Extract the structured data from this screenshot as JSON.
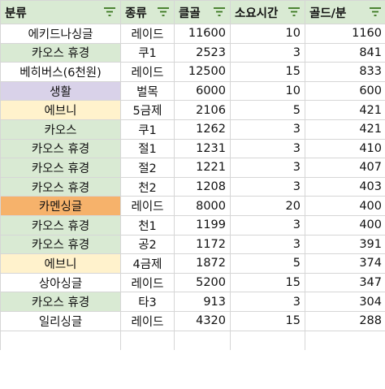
{
  "headers": [
    "분류",
    "종류",
    "클골",
    "소요시간",
    "골드/분"
  ],
  "colors": {
    "header_bg": "#d9ead3",
    "chaos": "#d9ead3",
    "life": "#d9d2e9",
    "epona": "#fff2cc",
    "kamen": "#f6b26b",
    "white": "#ffffff",
    "filter_icon": "#38761d"
  },
  "rows": [
    {
      "category": "에키드나싱글",
      "type": "레이드",
      "gold": "11600",
      "time": "10",
      "gpm": "1160",
      "bg": "white"
    },
    {
      "category": "카오스 휴경",
      "type": "쿠1",
      "gold": "2523",
      "time": "3",
      "gpm": "841",
      "bg": "chaos"
    },
    {
      "category": "베히버스(6천원)",
      "type": "레이드",
      "gold": "12500",
      "time": "15",
      "gpm": "833",
      "bg": "white"
    },
    {
      "category": "생활",
      "type": "벌목",
      "gold": "6000",
      "time": "10",
      "gpm": "600",
      "bg": "life"
    },
    {
      "category": "에브니",
      "type": "5금제",
      "gold": "2106",
      "time": "5",
      "gpm": "421",
      "bg": "epona"
    },
    {
      "category": "카오스",
      "type": "쿠1",
      "gold": "1262",
      "time": "3",
      "gpm": "421",
      "bg": "chaos"
    },
    {
      "category": "카오스 휴경",
      "type": "절1",
      "gold": "1231",
      "time": "3",
      "gpm": "410",
      "bg": "chaos"
    },
    {
      "category": "카오스 휴경",
      "type": "절2",
      "gold": "1221",
      "time": "3",
      "gpm": "407",
      "bg": "chaos"
    },
    {
      "category": "카오스 휴경",
      "type": "천2",
      "gold": "1208",
      "time": "3",
      "gpm": "403",
      "bg": "chaos"
    },
    {
      "category": "카멘싱글",
      "type": "레이드",
      "gold": "8000",
      "time": "20",
      "gpm": "400",
      "bg": "kamen"
    },
    {
      "category": "카오스 휴경",
      "type": "천1",
      "gold": "1199",
      "time": "3",
      "gpm": "400",
      "bg": "chaos"
    },
    {
      "category": "카오스 휴경",
      "type": "공2",
      "gold": "1172",
      "time": "3",
      "gpm": "391",
      "bg": "chaos"
    },
    {
      "category": "에브니",
      "type": "4금제",
      "gold": "1872",
      "time": "5",
      "gpm": "374",
      "bg": "epona"
    },
    {
      "category": "상아싱글",
      "type": "레이드",
      "gold": "5200",
      "time": "15",
      "gpm": "347",
      "bg": "white"
    },
    {
      "category": "카오스 휴경",
      "type": "타3",
      "gold": "913",
      "time": "3",
      "gpm": "304",
      "bg": "chaos"
    },
    {
      "category": "일리싱글",
      "type": "레이드",
      "gold": "4320",
      "time": "15",
      "gpm": "288",
      "bg": "white"
    },
    {
      "category": "",
      "type": "",
      "gold": "",
      "time": "",
      "gpm": "",
      "bg": "white"
    }
  ]
}
